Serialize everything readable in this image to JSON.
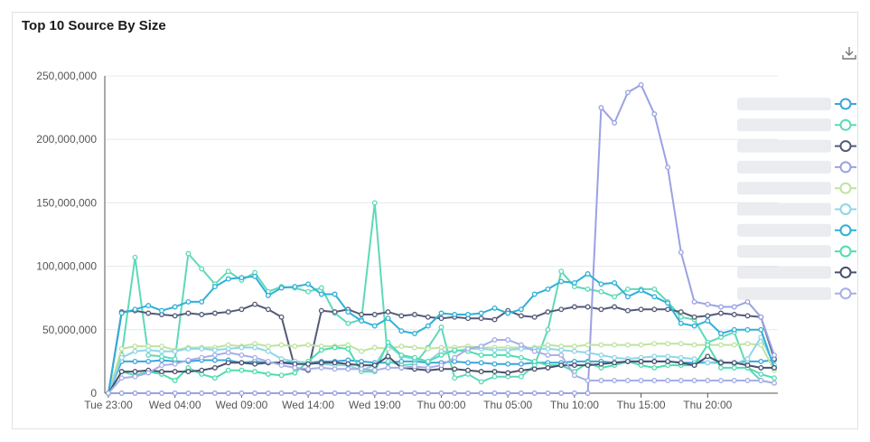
{
  "panel": {
    "title": "Top 10 Source By Size"
  },
  "icons": {
    "download": "download-icon"
  },
  "chart_data": {
    "type": "line",
    "title": "Top 10 Source By Size",
    "xlabel": "",
    "ylabel": "",
    "ylim": [
      0,
      250000000
    ],
    "y_ticks": [
      "0",
      "50,000,000",
      "100,000,000",
      "150,000,000",
      "200,000,000",
      "250,000,000"
    ],
    "y_tick_values": [
      0,
      50000000,
      100000000,
      150000000,
      200000000,
      250000000
    ],
    "x_tick_labels": [
      "Tue 23:00",
      "Wed 04:00",
      "Wed 09:00",
      "Wed 14:00",
      "Wed 19:00",
      "Thu 00:00",
      "Thu 05:00",
      "Thu 10:00",
      "Thu 15:00",
      "Thu 20:00"
    ],
    "x_tick_hours": [
      0,
      5,
      10,
      15,
      20,
      25,
      30,
      35,
      40,
      45
    ],
    "x_start_hour": 0,
    "x_step_hours": 1,
    "grid": true,
    "legend_position": "right",
    "series": [
      {
        "color": "#3aa6d9",
        "values": [
          0,
          25000000,
          25000000,
          25000000,
          26000000,
          25000000,
          25000000,
          26000000,
          26000000,
          26000000,
          24000000,
          25000000,
          24000000,
          24000000,
          25000000,
          24000000,
          25000000,
          25000000,
          26000000,
          25000000,
          24000000,
          24000000,
          25000000,
          25000000,
          24000000,
          24000000,
          25000000,
          24000000,
          24000000,
          23000000,
          23000000,
          23000000,
          24000000,
          24000000,
          24000000,
          25000000,
          25000000,
          25000000,
          24000000,
          25000000,
          25000000,
          25000000,
          25000000,
          24000000,
          24000000,
          24000000,
          24000000,
          24000000,
          25000000,
          25000000,
          26000000
        ]
      },
      {
        "color": "#5fd9b8",
        "values": [
          0,
          30000000,
          107000000,
          30000000,
          29000000,
          27000000,
          110000000,
          98000000,
          86000000,
          96000000,
          89000000,
          95000000,
          80000000,
          84000000,
          83000000,
          80000000,
          83000000,
          63000000,
          55000000,
          58000000,
          150000000,
          25000000,
          22000000,
          23000000,
          36000000,
          52000000,
          12000000,
          15000000,
          9000000,
          13000000,
          13000000,
          13000000,
          22000000,
          50000000,
          96000000,
          84000000,
          82000000,
          80000000,
          76000000,
          82000000,
          82000000,
          82000000,
          72000000,
          60000000,
          58000000,
          40000000,
          44000000,
          48000000,
          20000000,
          10000000,
          8000000
        ]
      },
      {
        "color": "#545a78",
        "values": [
          0,
          64000000,
          65000000,
          63000000,
          62000000,
          61000000,
          63000000,
          62000000,
          63000000,
          64000000,
          66000000,
          70000000,
          66000000,
          60000000,
          20000000,
          18000000,
          65000000,
          64000000,
          66000000,
          62000000,
          62000000,
          64000000,
          61000000,
          62000000,
          60000000,
          59000000,
          60000000,
          59000000,
          59000000,
          58000000,
          65000000,
          61000000,
          60000000,
          64000000,
          66000000,
          68000000,
          68000000,
          66000000,
          68000000,
          65000000,
          66000000,
          66000000,
          66000000,
          64000000,
          60000000,
          61000000,
          63000000,
          62000000,
          61000000,
          60000000,
          27000000
        ]
      },
      {
        "color": "#9aa2e2",
        "values": [
          0,
          0,
          0,
          0,
          0,
          0,
          0,
          0,
          0,
          0,
          0,
          0,
          0,
          0,
          0,
          0,
          0,
          0,
          0,
          0,
          0,
          0,
          0,
          0,
          0,
          0,
          0,
          0,
          0,
          0,
          0,
          0,
          0,
          0,
          0,
          0,
          0,
          225000000,
          213000000,
          237000000,
          243000000,
          220000000,
          178000000,
          111000000,
          72000000,
          70000000,
          68000000,
          68000000,
          72000000,
          60000000,
          30000000
        ]
      },
      {
        "color": "#bfe39f",
        "values": [
          0,
          35000000,
          37000000,
          37000000,
          37000000,
          34000000,
          36000000,
          36000000,
          36000000,
          38000000,
          37000000,
          39000000,
          37000000,
          38000000,
          37000000,
          38000000,
          37000000,
          37000000,
          38000000,
          33000000,
          36000000,
          35000000,
          37000000,
          36000000,
          35000000,
          36000000,
          36000000,
          37000000,
          36000000,
          36000000,
          36000000,
          36000000,
          36000000,
          38000000,
          37000000,
          37000000,
          38000000,
          38000000,
          38000000,
          38000000,
          38000000,
          39000000,
          39000000,
          39000000,
          38000000,
          38000000,
          38000000,
          38000000,
          39000000,
          38000000,
          18000000
        ]
      },
      {
        "color": "#8fd6e8",
        "values": [
          0,
          28000000,
          33000000,
          34000000,
          33000000,
          33000000,
          35000000,
          35000000,
          34000000,
          35000000,
          36000000,
          36000000,
          33000000,
          27000000,
          25000000,
          24000000,
          23000000,
          22000000,
          22000000,
          18000000,
          22000000,
          38000000,
          29000000,
          27000000,
          25000000,
          33000000,
          33000000,
          35000000,
          35000000,
          34000000,
          34000000,
          35000000,
          35000000,
          35000000,
          34000000,
          33000000,
          32000000,
          30000000,
          28000000,
          27000000,
          28000000,
          29000000,
          29000000,
          28000000,
          27000000,
          24000000,
          25000000,
          23000000,
          27000000,
          44000000,
          22000000
        ]
      },
      {
        "color": "#2fb0d8",
        "values": [
          0,
          63000000,
          66000000,
          69000000,
          65000000,
          68000000,
          72000000,
          72000000,
          84000000,
          90000000,
          91000000,
          92000000,
          77000000,
          83000000,
          84000000,
          86000000,
          78000000,
          78000000,
          64000000,
          57000000,
          53000000,
          59000000,
          49000000,
          47000000,
          53000000,
          63000000,
          62000000,
          62000000,
          63000000,
          67000000,
          63000000,
          66000000,
          78000000,
          82000000,
          88000000,
          87000000,
          94000000,
          86000000,
          87000000,
          76000000,
          81000000,
          76000000,
          71000000,
          55000000,
          53000000,
          57000000,
          47000000,
          50000000,
          50000000,
          50000000,
          20000000
        ]
      },
      {
        "color": "#4fdcb0",
        "values": [
          0,
          17000000,
          14000000,
          17000000,
          15000000,
          10000000,
          20000000,
          15000000,
          12000000,
          18000000,
          18000000,
          17000000,
          15000000,
          14000000,
          16000000,
          25000000,
          34000000,
          36000000,
          35000000,
          17000000,
          17000000,
          40000000,
          30000000,
          28000000,
          25000000,
          30000000,
          34000000,
          33000000,
          30000000,
          30000000,
          30000000,
          28000000,
          25000000,
          22000000,
          22000000,
          17000000,
          24000000,
          20000000,
          22000000,
          25000000,
          22000000,
          20000000,
          22000000,
          22000000,
          22000000,
          38000000,
          20000000,
          20000000,
          20000000,
          15000000,
          12000000
        ]
      },
      {
        "color": "#4a506e",
        "values": [
          0,
          17000000,
          17000000,
          18000000,
          17000000,
          17000000,
          17000000,
          18000000,
          20000000,
          24000000,
          24000000,
          23000000,
          24000000,
          24000000,
          23000000,
          23000000,
          24000000,
          24000000,
          23000000,
          22000000,
          22000000,
          29000000,
          20000000,
          19000000,
          18000000,
          19000000,
          19000000,
          18000000,
          17000000,
          17000000,
          16000000,
          18000000,
          19000000,
          20000000,
          22000000,
          22000000,
          22000000,
          23000000,
          24000000,
          25000000,
          25000000,
          25000000,
          25000000,
          24000000,
          22000000,
          29000000,
          24000000,
          24000000,
          22000000,
          20000000,
          20000000
        ]
      },
      {
        "color": "#a6aee6",
        "values": [
          0,
          12000000,
          13000000,
          16000000,
          22000000,
          23000000,
          26000000,
          28000000,
          30000000,
          32000000,
          30000000,
          28000000,
          25000000,
          22000000,
          20000000,
          19000000,
          20000000,
          19000000,
          19000000,
          19000000,
          18000000,
          20000000,
          20000000,
          21000000,
          20000000,
          22000000,
          28000000,
          35000000,
          37000000,
          42000000,
          42000000,
          38000000,
          33000000,
          30000000,
          30000000,
          14000000,
          10000000,
          10000000,
          10000000,
          10000000,
          10000000,
          10000000,
          10000000,
          10000000,
          10000000,
          10000000,
          10000000,
          10000000,
          10000000,
          10000000,
          8000000
        ]
      }
    ]
  }
}
